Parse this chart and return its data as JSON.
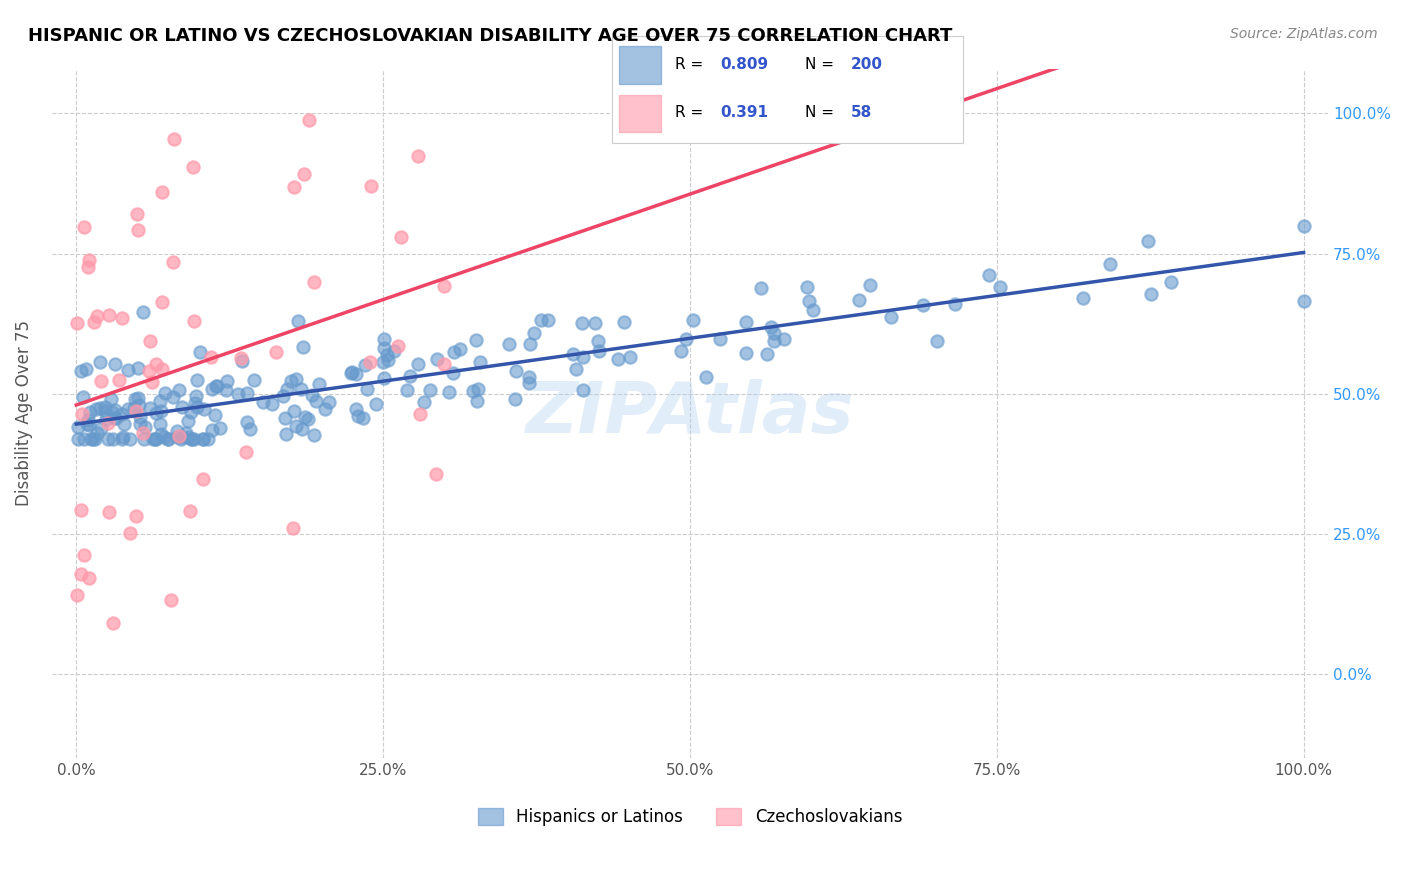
{
  "title": "HISPANIC OR LATINO VS CZECHOSLOVAKIAN DISABILITY AGE OVER 75 CORRELATION CHART",
  "source": "Source: ZipAtlas.com",
  "xlabel_bottom": "",
  "ylabel": "Disability Age Over 75",
  "watermark": "ZIPAtlas",
  "blue_color": "#6699CC",
  "blue_line_color": "#3355AA",
  "pink_color": "#FF99AA",
  "pink_line_color": "#EE4466",
  "blue_R": 0.809,
  "blue_N": 200,
  "pink_R": 0.391,
  "pink_N": 58,
  "legend_label_blue": "Hispanics or Latinos",
  "legend_label_pink": "Czechoslovakians",
  "x_ticks": [
    0.0,
    25.0,
    50.0,
    75.0,
    100.0
  ],
  "y_ticks_right": [
    0.0,
    25.0,
    50.0,
    75.0,
    100.0
  ],
  "background_color": "#ffffff",
  "grid_color": "#cccccc",
  "title_color": "#000000",
  "axis_label_color": "#555555",
  "tick_color": "#555555",
  "right_tick_blue": "#3399FF"
}
